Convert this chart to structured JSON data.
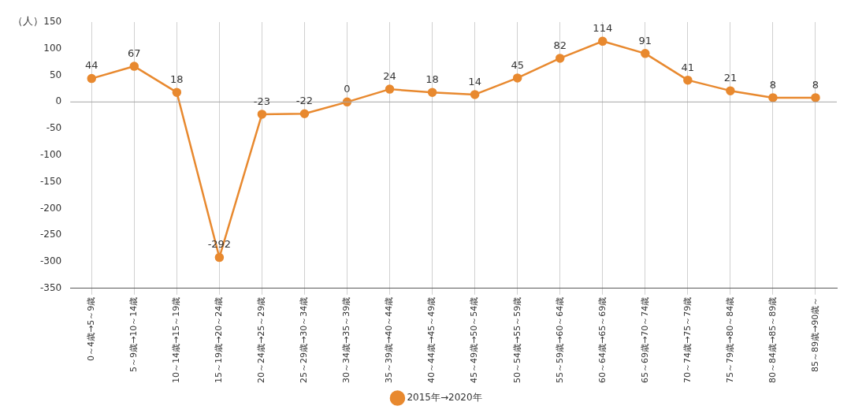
{
  "chart_data": {
    "type": "line",
    "ylabel": "（人）",
    "categories": [
      "0～4歳→5～9歳",
      "5～9歳→10～14歳",
      "10～14歳→15～19歳",
      "15～19歳→20～24歳",
      "20～24歳→25～29歳",
      "25～29歳→30～34歳",
      "30～34歳→35～39歳",
      "35～39歳→40～44歳",
      "40～44歳→45～49歳",
      "45～49歳→50～54歳",
      "50～54歳→55～59歳",
      "55～59歳→60～64歳",
      "60～64歳→65～69歳",
      "65～69歳→70～74歳",
      "70～74歳→75～79歳",
      "75～79歳→80～84歳",
      "80～84歳→85～89歳",
      "85～89歳→90歳～"
    ],
    "series": [
      {
        "name": "2015年→2020年",
        "color": "#e8892f",
        "values": [
          44,
          67,
          18,
          -292,
          -23,
          -22,
          0,
          24,
          18,
          14,
          45,
          82,
          114,
          91,
          41,
          21,
          8,
          8
        ]
      }
    ],
    "ylim": [
      -350,
      150
    ],
    "yticks": [
      -350,
      -300,
      -250,
      -200,
      -150,
      -100,
      -50,
      0,
      50,
      100,
      150
    ],
    "ref_lines": [
      {
        "axis": "y",
        "value": 0,
        "color": "#a6a6a6"
      }
    ],
    "grid": "x",
    "legend": "bottom",
    "marker": "circle",
    "line_style": "solid",
    "data_labels": true
  }
}
